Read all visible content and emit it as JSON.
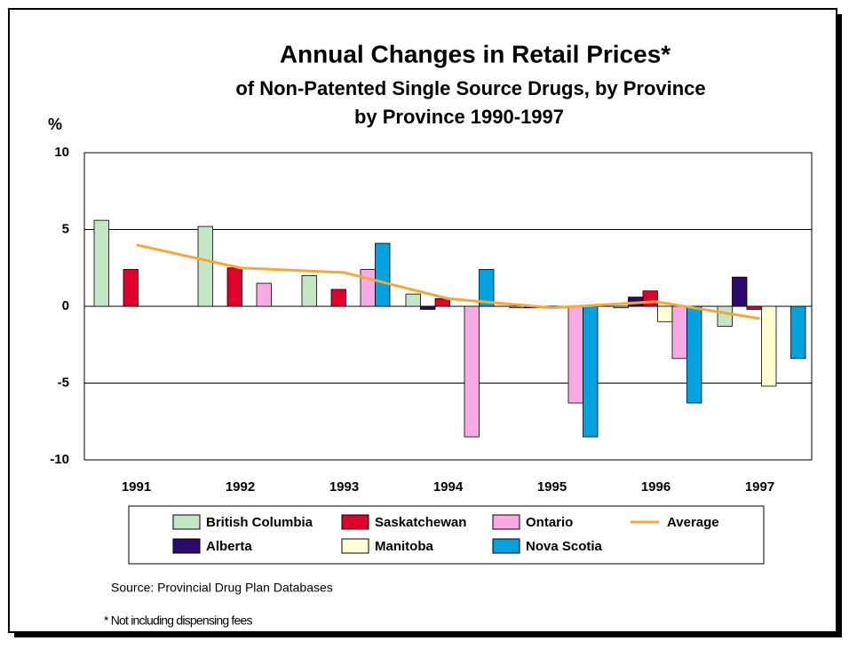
{
  "chart_data": {
    "type": "bar",
    "title": "Annual Changes in Retail Prices*",
    "subtitle": [
      "of Non-Patented Single Source Drugs, by Province",
      "by Province 1990-1997"
    ],
    "y_label": "%",
    "categories": [
      "1991",
      "1992",
      "1993",
      "1994",
      "1995",
      "1996",
      "1997"
    ],
    "series": [
      {
        "name": "British Columbia",
        "color": "#c4e6c4",
        "values": [
          5.6,
          5.2,
          2.0,
          0.8,
          -0.1,
          -0.1,
          -1.3
        ]
      },
      {
        "name": "Alberta",
        "color": "#2b0a6e",
        "values": [
          0,
          0,
          0,
          -0.2,
          -0.1,
          0.6,
          1.9
        ]
      },
      {
        "name": "Saskatchewan",
        "color": "#e0002b",
        "values": [
          2.4,
          2.5,
          1.1,
          0.5,
          0,
          1.0,
          -0.2
        ]
      },
      {
        "name": "Manitoba",
        "color": "#ffffd2",
        "values": [
          0,
          0,
          0,
          0,
          0,
          -1.0,
          -5.2
        ]
      },
      {
        "name": "Ontario",
        "color": "#f9a9e3",
        "values": [
          0,
          1.5,
          2.4,
          -8.5,
          -6.3,
          -3.4,
          0
        ]
      },
      {
        "name": "Nova Scotia",
        "color": "#00a3e0",
        "values": [
          0,
          0,
          4.1,
          2.4,
          -8.5,
          -6.3,
          -3.4
        ]
      },
      {
        "name": "Average",
        "type": "line",
        "color": "#f7a833",
        "values": [
          4.0,
          2.5,
          2.2,
          0.5,
          -0.1,
          0.3,
          -0.8
        ]
      }
    ],
    "ylim": [
      -10,
      10
    ],
    "yticks": [
      -10,
      -5,
      0,
      5,
      10
    ],
    "grid": true,
    "source": "Source: Provincial Drug Plan Databases",
    "footnote": "* Not including dispensing fees"
  }
}
